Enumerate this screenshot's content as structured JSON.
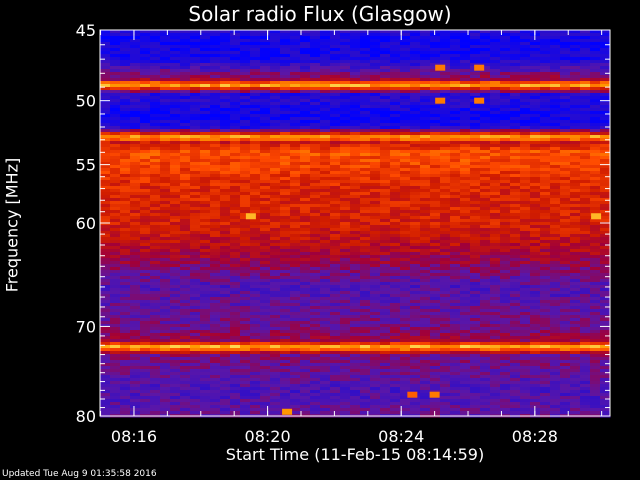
{
  "title": "Solar radio Flux (Glasgow)",
  "updated": "Updated Tue Aug  9 01:35:58 2016",
  "chart_data": {
    "type": "heatmap",
    "title": "Solar radio Flux (Glasgow)",
    "ylabel": "Frequency [MHz]",
    "xlabel": "Start Time (11-Feb-15 08:14:59)",
    "xlim": [
      "08:14:59",
      "08:30:15"
    ],
    "ylim": [
      80,
      45
    ],
    "y_scale": "log",
    "x_ticks": [
      "08:16",
      "08:20",
      "08:24",
      "08:28"
    ],
    "y_ticks": [
      45,
      50,
      55,
      60,
      70,
      80
    ],
    "colormap": [
      "#0000ff",
      "#2a0dcc",
      "#5a16a8",
      "#a0003a",
      "#d01c00",
      "#ff4a00",
      "#ff9a00",
      "#ffff80"
    ],
    "intensity_profile": {
      "frequency_mhz": [
        45,
        45.5,
        47,
        48.5,
        48.8,
        49.2,
        49.5,
        50,
        51,
        52,
        52.8,
        53.2,
        54,
        55,
        57,
        60,
        62,
        64,
        66,
        68,
        70,
        71.5,
        72.2,
        73,
        75,
        77,
        80
      ],
      "level": [
        0.15,
        0.05,
        0.08,
        0.45,
        0.95,
        0.5,
        0.12,
        0.12,
        0.05,
        0.08,
        0.9,
        0.55,
        0.72,
        0.68,
        0.6,
        0.58,
        0.5,
        0.38,
        0.25,
        0.3,
        0.33,
        0.42,
        0.92,
        0.35,
        0.3,
        0.24,
        0.3
      ]
    },
    "hot_spots": [
      {
        "time": "08:19:30",
        "freq": 59.4,
        "level": 0.9
      },
      {
        "time": "08:29:50",
        "freq": 59.4,
        "level": 0.9
      },
      {
        "time": "08:25:10",
        "freq": 47.6,
        "level": 0.8
      },
      {
        "time": "08:25:10",
        "freq": 50.0,
        "level": 0.8
      },
      {
        "time": "08:26:20",
        "freq": 47.6,
        "level": 0.8
      },
      {
        "time": "08:26:20",
        "freq": 50.0,
        "level": 0.8
      },
      {
        "time": "08:25:00",
        "freq": 77.5,
        "level": 0.8
      },
      {
        "time": "08:24:20",
        "freq": 77.5,
        "level": 0.75
      },
      {
        "time": "08:20:35",
        "freq": 79.5,
        "level": 0.85
      }
    ]
  }
}
